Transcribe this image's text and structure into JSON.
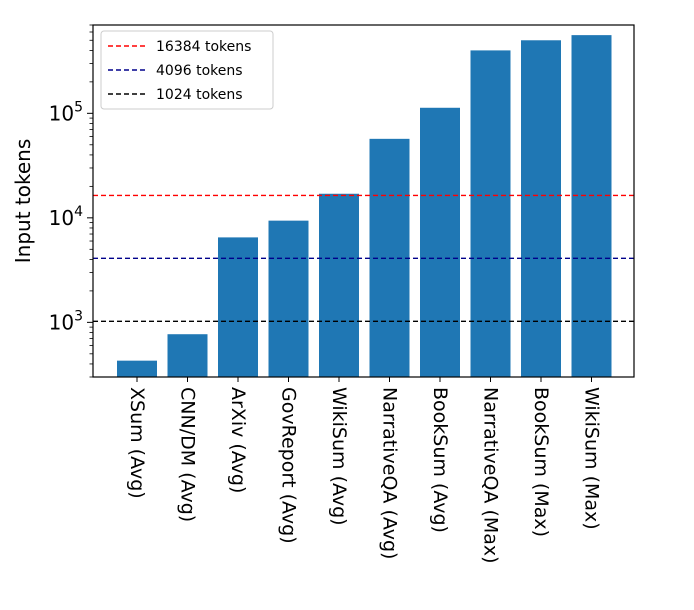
{
  "chart_data": {
    "type": "bar",
    "title": "",
    "xlabel": "",
    "ylabel": "Input tokens",
    "yscale": "log",
    "ylim": [
      300,
      700000
    ],
    "yticks": [
      {
        "value": 1000,
        "base": "10",
        "exp": "3"
      },
      {
        "value": 10000,
        "base": "10",
        "exp": "4"
      },
      {
        "value": 100000,
        "base": "10",
        "exp": "5"
      }
    ],
    "categories": [
      "XSum (Avg)",
      "CNN/DM (Avg)",
      "ArXiv (Avg)",
      "GovReport (Avg)",
      "WikiSum (Avg)",
      "NarrativeQA (Avg)",
      "BookSum (Avg)",
      "NarrativeQA (Max)",
      "BookSum (Max)",
      "WikiSum (Max)"
    ],
    "values": [
      430,
      770,
      6500,
      9400,
      17000,
      57000,
      113000,
      400000,
      500000,
      560000
    ],
    "bar_color": "#1f77b4",
    "grid": false,
    "legend_position": "top-left",
    "reference_lines": [
      {
        "label": "16384 tokens",
        "value": 16384,
        "color": "#ff0000"
      },
      {
        "label": "4096 tokens",
        "value": 4096,
        "color": "#00008b"
      },
      {
        "label": "1024 tokens",
        "value": 1024,
        "color": "#000000"
      }
    ]
  }
}
